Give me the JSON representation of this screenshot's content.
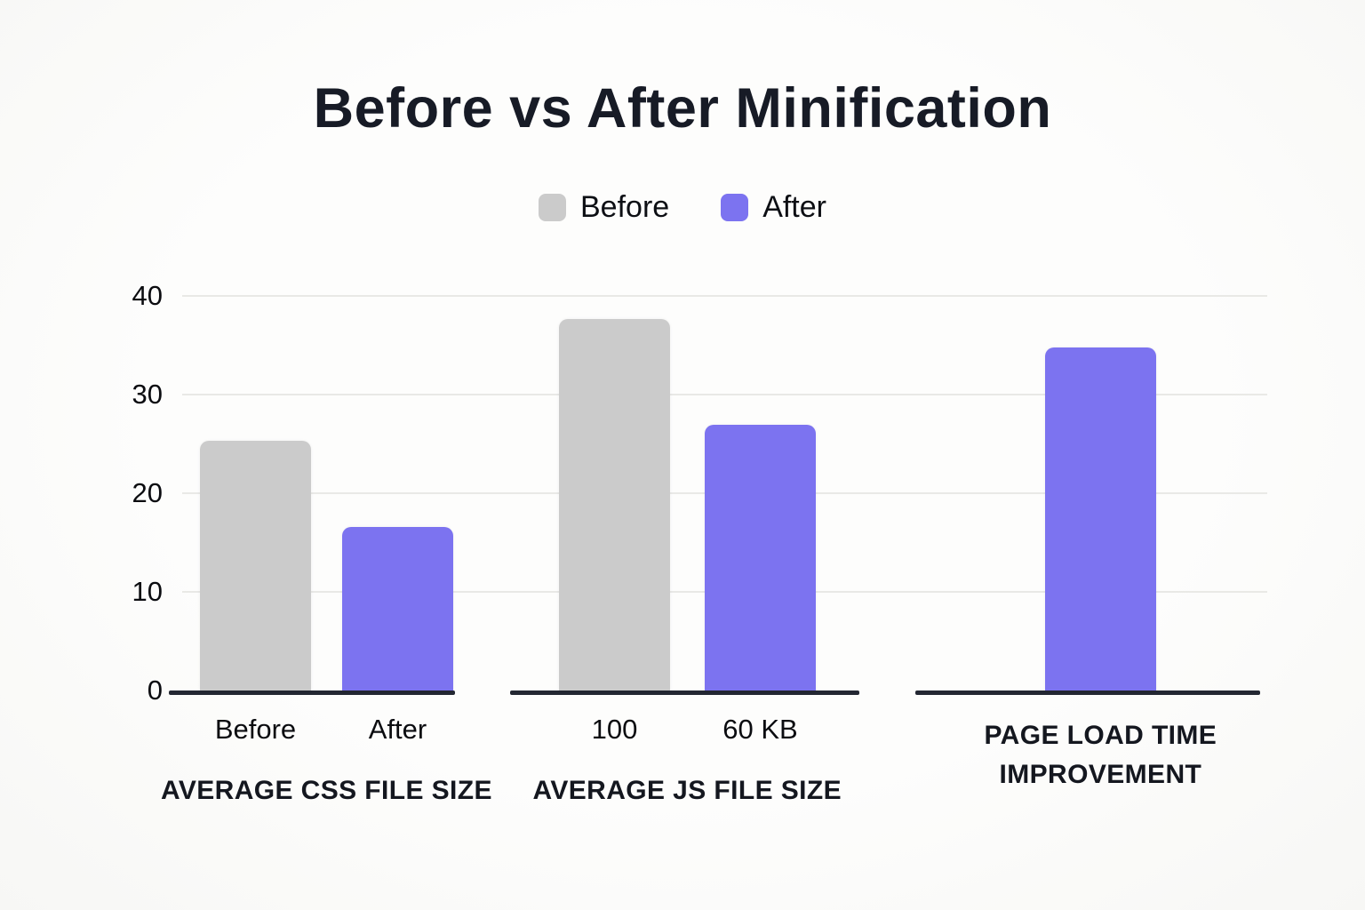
{
  "chart_data": {
    "type": "bar",
    "title": "Before vs After Minification",
    "xlabel": "",
    "ylabel": "",
    "ylim": [
      0,
      40
    ],
    "yticks": [
      0,
      10,
      20,
      30,
      40
    ],
    "grid": "horizontal",
    "legend_position": "top-center",
    "series": [
      {
        "name": "Before",
        "color": "#cbcbcb"
      },
      {
        "name": "After",
        "color": "#7c73f0"
      }
    ],
    "groups": [
      {
        "label": "AVERAGE CSS FILE SIZE",
        "label_lines": [
          "AVERAGE CSS FILE SIZE"
        ],
        "bars": [
          {
            "series": "Before",
            "tick": "Before",
            "value": 25.3
          },
          {
            "series": "After",
            "tick": "After",
            "value": 16.6
          }
        ]
      },
      {
        "label": "AVERAGE JS FILE SIZE",
        "label_lines": [
          "AVERAGE JS FILE SIZE"
        ],
        "bars": [
          {
            "series": "Before",
            "tick": "100",
            "value": 37.7
          },
          {
            "series": "After",
            "tick": "60 KB",
            "value": 26.9
          }
        ]
      },
      {
        "label": "PAGE LOAD TIME IMPROVEMENT",
        "label_lines": [
          "PAGE LOAD TIME",
          "IMPROVEMENT"
        ],
        "bars": [
          {
            "series": "After",
            "tick": "",
            "value": 34.8
          }
        ]
      }
    ]
  }
}
